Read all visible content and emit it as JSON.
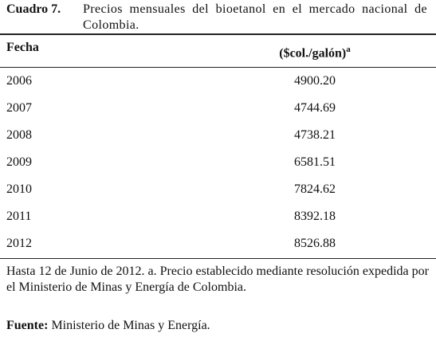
{
  "caption": {
    "label": "Cuadro 7.",
    "text": "Precios mensuales del bioetanol en el mercado nacional de Colombia."
  },
  "table": {
    "header": [
      "Fecha",
      "($col./galón)"
    ],
    "header_note": "a",
    "rows": [
      [
        "2006",
        "4900.20"
      ],
      [
        "2007",
        "4744.69"
      ],
      [
        "2008",
        "4738.21"
      ],
      [
        "2009",
        "6581.51"
      ],
      [
        "2010",
        "7824.62"
      ],
      [
        "2011",
        "8392.18"
      ],
      [
        "2012",
        "8526.88"
      ]
    ]
  },
  "note": "Hasta 12 de Junio de 2012. a. Precio establecido mediante resolución expedida por el Ministerio de Minas y Energía de Colombia.",
  "source": {
    "label": "Fuente:",
    "text": "Ministerio de Minas y Energía."
  }
}
